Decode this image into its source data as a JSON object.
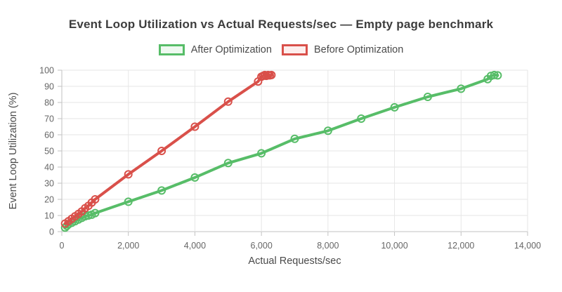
{
  "header": {
    "title": "Event Loop Utilization vs Actual Requests/sec — Empty page benchmark"
  },
  "legend": {
    "items": [
      {
        "label": "After Optimization",
        "color": "#57bd68",
        "fill": "#eef9f0"
      },
      {
        "label": "Before Optimization",
        "color": "#d9504a",
        "fill": "#fdeeed"
      }
    ]
  },
  "axes": {
    "x_label": "Actual Requests/sec",
    "y_label": "Event Loop Utilization (%)"
  },
  "colors": {
    "grid": "#e6e6e6",
    "axis": "#c2c2c2",
    "tick_text": "#666666",
    "title_text": "#3d3d3d",
    "label_text": "#4a4a4a",
    "background": "#ffffff"
  },
  "chart_data": {
    "type": "line",
    "title": "Event Loop Utilization vs Actual Requests/sec — Empty page benchmark",
    "xlabel": "Actual Requests/sec",
    "ylabel": "Event Loop Utilization (%)",
    "xlim": [
      0,
      14000
    ],
    "ylim": [
      0,
      100
    ],
    "grid": true,
    "legend_position": "top",
    "x_ticks": [
      0,
      2000,
      4000,
      6000,
      8000,
      10000,
      12000,
      14000
    ],
    "x_tick_labels": [
      "0",
      "2,000",
      "4,000",
      "6,000",
      "8,000",
      "10,000",
      "12,000",
      "14,000"
    ],
    "y_ticks": [
      0,
      10,
      20,
      30,
      40,
      50,
      60,
      70,
      80,
      90,
      100
    ],
    "y_tick_labels": [
      "0",
      "10",
      "20",
      "30",
      "40",
      "50",
      "60",
      "70",
      "80",
      "90",
      "100"
    ],
    "marker": "open-circle",
    "series": [
      {
        "name": "After Optimization",
        "color": "#57bd68",
        "points": [
          [
            100,
            2.5
          ],
          [
            150,
            3.5
          ],
          [
            200,
            4.5
          ],
          [
            300,
            5.5
          ],
          [
            400,
            6.5
          ],
          [
            500,
            7.5
          ],
          [
            600,
            8.5
          ],
          [
            700,
            9.5
          ],
          [
            800,
            10
          ],
          [
            900,
            10.5
          ],
          [
            1000,
            11.5
          ],
          [
            2000,
            18.5
          ],
          [
            3000,
            25.5
          ],
          [
            4000,
            33.5
          ],
          [
            5000,
            42.5
          ],
          [
            6000,
            48.5
          ],
          [
            7000,
            57.5
          ],
          [
            8000,
            62.5
          ],
          [
            9000,
            70
          ],
          [
            10000,
            77
          ],
          [
            11000,
            83.5
          ],
          [
            12000,
            88.5
          ],
          [
            12800,
            94.5
          ],
          [
            12900,
            96.5
          ],
          [
            13000,
            97
          ],
          [
            13100,
            96.8
          ]
        ]
      },
      {
        "name": "Before Optimization",
        "color": "#d9504a",
        "points": [
          [
            100,
            5
          ],
          [
            200,
            6.5
          ],
          [
            300,
            8
          ],
          [
            400,
            9.5
          ],
          [
            500,
            11
          ],
          [
            600,
            12.5
          ],
          [
            700,
            14.5
          ],
          [
            800,
            16
          ],
          [
            900,
            18
          ],
          [
            1000,
            20
          ],
          [
            2000,
            35.5
          ],
          [
            3000,
            50
          ],
          [
            4000,
            65
          ],
          [
            5000,
            80.5
          ],
          [
            5900,
            93
          ],
          [
            6000,
            96
          ],
          [
            6050,
            96.5
          ],
          [
            6100,
            97
          ],
          [
            6150,
            96.5
          ],
          [
            6200,
            97
          ],
          [
            6250,
            96.8
          ],
          [
            6300,
            97
          ]
        ]
      }
    ]
  }
}
